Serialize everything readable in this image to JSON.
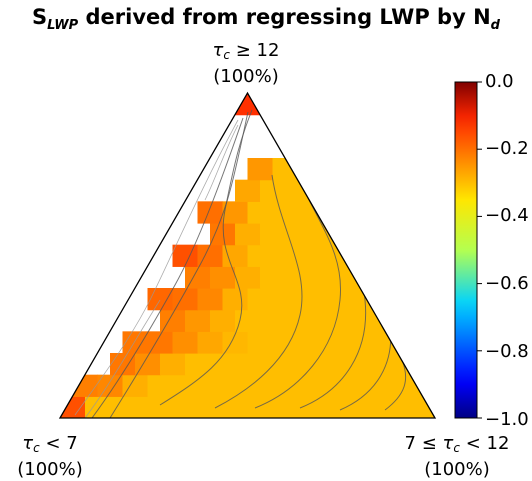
{
  "chart_data": {
    "type": "heatmap",
    "layout": "ternary",
    "title": "S_LWP derived from regressing LWP by N_d",
    "title_parts": {
      "symbol": "S",
      "sub": "LWP",
      "rest": "derived from regressing LWP by N",
      "tail_sub": "d"
    },
    "vertices": [
      {
        "symbol": "τ",
        "sub": "c",
        "condition": "≥ 12",
        "pct": "(100%)"
      },
      {
        "symbol": "τ",
        "sub": "c",
        "condition": "< 7",
        "pct": "(100%)"
      },
      {
        "prefix": "7 ≤",
        "symbol": "τ",
        "sub": "c",
        "condition": "< 12",
        "pct": "(100%)"
      }
    ],
    "colorbar": {
      "colormap": "jet",
      "range": [
        -1.0,
        0.0
      ],
      "ticks": [
        "0.0",
        "−0.2",
        "−0.4",
        "−0.6",
        "−0.8",
        "−1.0"
      ]
    },
    "grid_note": "row 0 = bottom row (τc<12 share ~0%), col 0 = left side; value = S_LWP",
    "cells": [
      [
        -0.16,
        -0.3,
        -0.3,
        -0.3,
        -0.3,
        -0.3,
        -0.3,
        -0.3,
        -0.3,
        -0.3,
        -0.3,
        -0.3,
        -0.3,
        -0.3,
        -0.3
      ],
      [
        -0.22,
        -0.23,
        -0.28,
        -0.3,
        -0.3,
        -0.3,
        -0.3,
        -0.3,
        -0.3,
        -0.3,
        -0.3,
        -0.3,
        -0.3,
        -0.3
      ],
      [
        -0.2,
        -0.21,
        -0.24,
        -0.28,
        -0.3,
        -0.3,
        -0.3,
        -0.3,
        -0.3,
        -0.3,
        -0.3,
        -0.3,
        -0.3
      ],
      [
        -0.2,
        -0.21,
        -0.21,
        -0.24,
        -0.27,
        -0.29,
        -0.3,
        -0.3,
        -0.3,
        -0.3,
        -0.3,
        -0.3
      ],
      [
        -0.19,
        -0.2,
        -0.22,
        -0.25,
        -0.28,
        -0.3,
        -0.3,
        -0.3,
        -0.3,
        -0.3,
        -0.3
      ],
      [
        -0.12,
        -0.19,
        -0.2,
        -0.23,
        -0.28,
        -0.3,
        -0.3,
        -0.3,
        -0.3,
        -0.3
      ],
      [
        -0.17,
        -0.18,
        -0.22,
        -0.24,
        -0.28,
        -0.3,
        -0.3,
        -0.3,
        -0.3
      ],
      [
        -0.15,
        -0.16,
        -0.2,
        -0.27,
        -0.3,
        -0.3,
        -0.3,
        -0.3
      ],
      [
        -0.16,
        -0.19,
        -0.21,
        -0.28,
        -0.3,
        -0.3,
        -0.3
      ],
      [
        -0.17,
        -0.2,
        -0.25,
        -0.3,
        -0.3,
        -0.3
      ],
      [
        -0.18,
        -0.21,
        -0.27,
        -0.3,
        -0.3
      ],
      [
        -0.2,
        -0.22,
        -0.25,
        -0.3
      ],
      [
        -0.2,
        -0.21,
        -0.24
      ],
      [
        -0.16,
        -0.22
      ],
      [
        -0.12
      ]
    ],
    "missing_cells": [
      [
        2,
        0
      ],
      [
        3,
        0
      ],
      [
        4,
        0
      ],
      [
        5,
        0
      ],
      [
        6,
        0
      ],
      [
        7,
        0
      ],
      [
        8,
        0
      ],
      [
        9,
        0
      ],
      [
        10,
        0
      ],
      [
        11,
        0
      ],
      [
        12,
        0
      ],
      [
        13,
        0
      ],
      [
        4,
        1
      ],
      [
        6,
        1
      ],
      [
        8,
        1
      ],
      [
        10,
        1
      ],
      [
        11,
        1
      ],
      [
        12,
        1
      ],
      [
        13,
        1
      ],
      [
        12,
        2
      ]
    ],
    "contour_overlay": true
  }
}
